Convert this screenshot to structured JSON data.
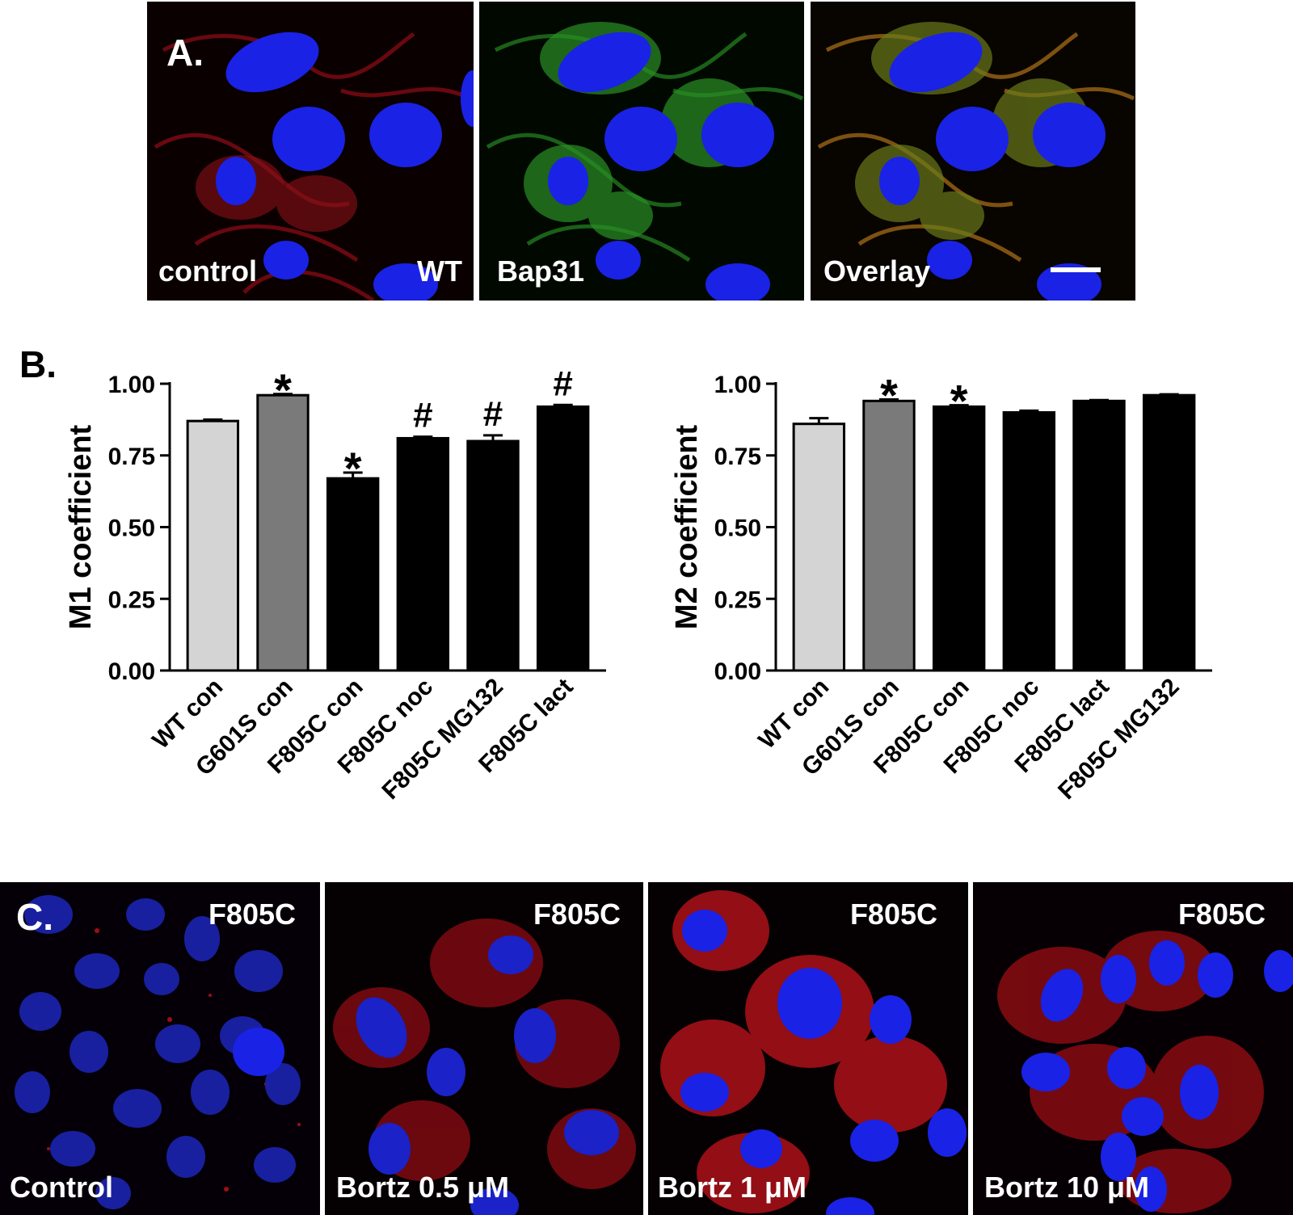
{
  "panels": {
    "a": {
      "letter": "A.",
      "images": [
        {
          "label_left": "control",
          "label_right": "WT",
          "channel": "red"
        },
        {
          "label_left": "Bap31",
          "label_right": "",
          "channel": "green"
        },
        {
          "label_left": "Overlay",
          "label_right": "",
          "channel": "overlay"
        }
      ]
    },
    "b": {
      "letter": "B."
    },
    "c": {
      "letter": "C.",
      "images": [
        {
          "label_top": "F805C",
          "label_bottom": "Control"
        },
        {
          "label_top": "F805C",
          "label_bottom": "Bortz 0.5 μM"
        },
        {
          "label_top": "F805C",
          "label_bottom": "Bortz 1 μM"
        },
        {
          "label_top": "F805C",
          "label_bottom": "Bortz 10 μM"
        }
      ]
    }
  },
  "colors": {
    "bar_light": "#d4d4d4",
    "bar_mid": "#7a7a7a",
    "bar_dark": "#000000",
    "nucleus": "#1a22e6",
    "red_stain": "#e0141e",
    "green_stain": "#2fb52a"
  },
  "chart_data": [
    {
      "type": "bar",
      "ylabel": "M1 coefficient",
      "ylim": [
        0,
        1.0
      ],
      "yticks": [
        "0.00",
        "0.25",
        "0.50",
        "0.75",
        "1.00"
      ],
      "categories": [
        "WT con",
        "G601S con",
        "F805C con",
        "F805C noc",
        "F805C MG132",
        "F805C lact"
      ],
      "values": [
        0.87,
        0.96,
        0.67,
        0.81,
        0.8,
        0.92
      ],
      "errors": [
        0.005,
        0.004,
        0.02,
        0.005,
        0.02,
        0.006
      ],
      "fill": [
        "light",
        "mid",
        "dark",
        "dark",
        "dark",
        "dark"
      ],
      "annotations": [
        "",
        "*",
        "*",
        "#",
        "#",
        "#"
      ]
    },
    {
      "type": "bar",
      "ylabel": "M2 coefficient",
      "ylim": [
        0,
        1.0
      ],
      "yticks": [
        "0.00",
        "0.25",
        "0.50",
        "0.75",
        "1.00"
      ],
      "categories": [
        "WT con",
        "G601S con",
        "F805C con",
        "F805C noc",
        "F805C lact",
        "F805C MG132"
      ],
      "values": [
        0.86,
        0.94,
        0.92,
        0.9,
        0.94,
        0.96
      ],
      "errors": [
        0.02,
        0.005,
        0.005,
        0.006,
        0.003,
        0.003
      ],
      "fill": [
        "light",
        "mid",
        "dark",
        "dark",
        "dark",
        "dark"
      ],
      "annotations": [
        "",
        "*",
        "*",
        "",
        "",
        ""
      ]
    }
  ]
}
